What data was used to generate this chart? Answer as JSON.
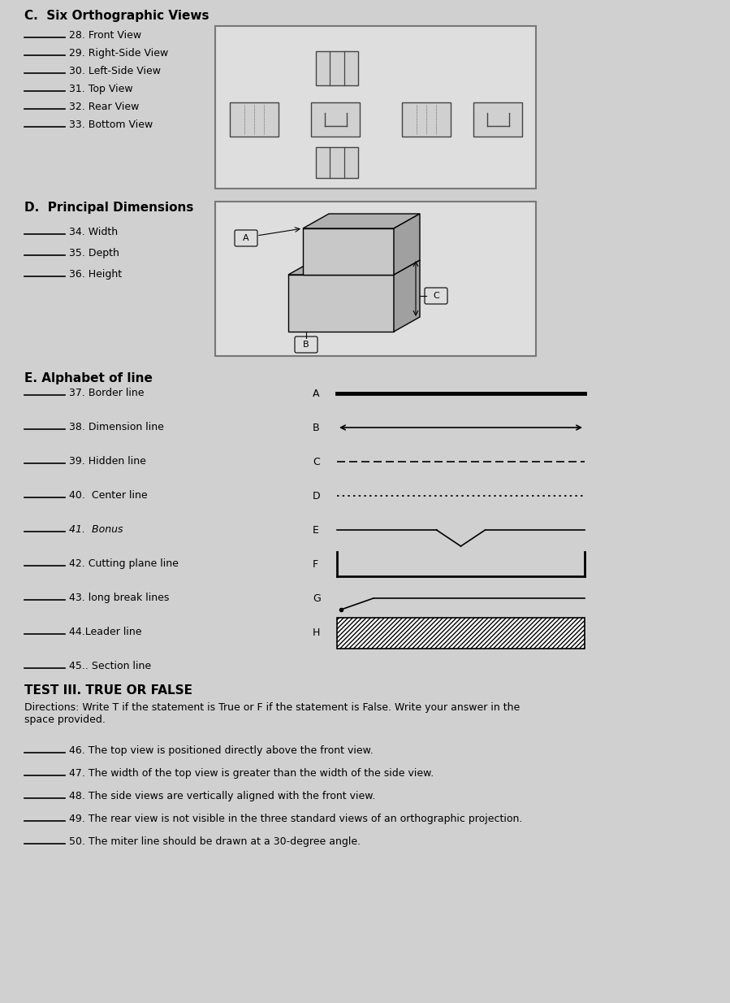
{
  "bg_color": "#d0d0d0",
  "title_c": "C.  Six Orthographic Views",
  "title_d": "D.  Principal Dimensions",
  "title_e": "E. Alphabet of line",
  "test_title": "TEST III. TRUE OR FALSE",
  "section_c_items": [
    "28. Front View",
    "29. Right-Side View",
    "30. Left-Side View",
    "31. Top View",
    "32. Rear View",
    "33. Bottom View"
  ],
  "section_d_items": [
    "34. Width",
    "35. Depth",
    "36. Height"
  ],
  "section_e_items": [
    "37. Border line",
    "38. Dimension line",
    "39. Hidden line",
    "40.  Center line",
    "41.  Bonus",
    "42. Cutting plane line",
    "43. long break lines",
    "44.Leader line",
    "45.. Section line"
  ],
  "line_labels": [
    "A",
    "B",
    "C",
    "D",
    "E",
    "F",
    "G",
    "H"
  ],
  "test_directions": "Directions: Write T if the statement is True or F if the statement is False. Write your answer in the\nspace provided.",
  "test_items": [
    "46. The top view is positioned directly above the front view.",
    "47. The width of the top view is greater than the width of the side view.",
    "48. The side views are vertically aligned with the front view.",
    "49. The rear view is not visible in the three standard views of an orthographic projection.",
    "50. The miter line should be drawn at a 30-degree angle."
  ]
}
